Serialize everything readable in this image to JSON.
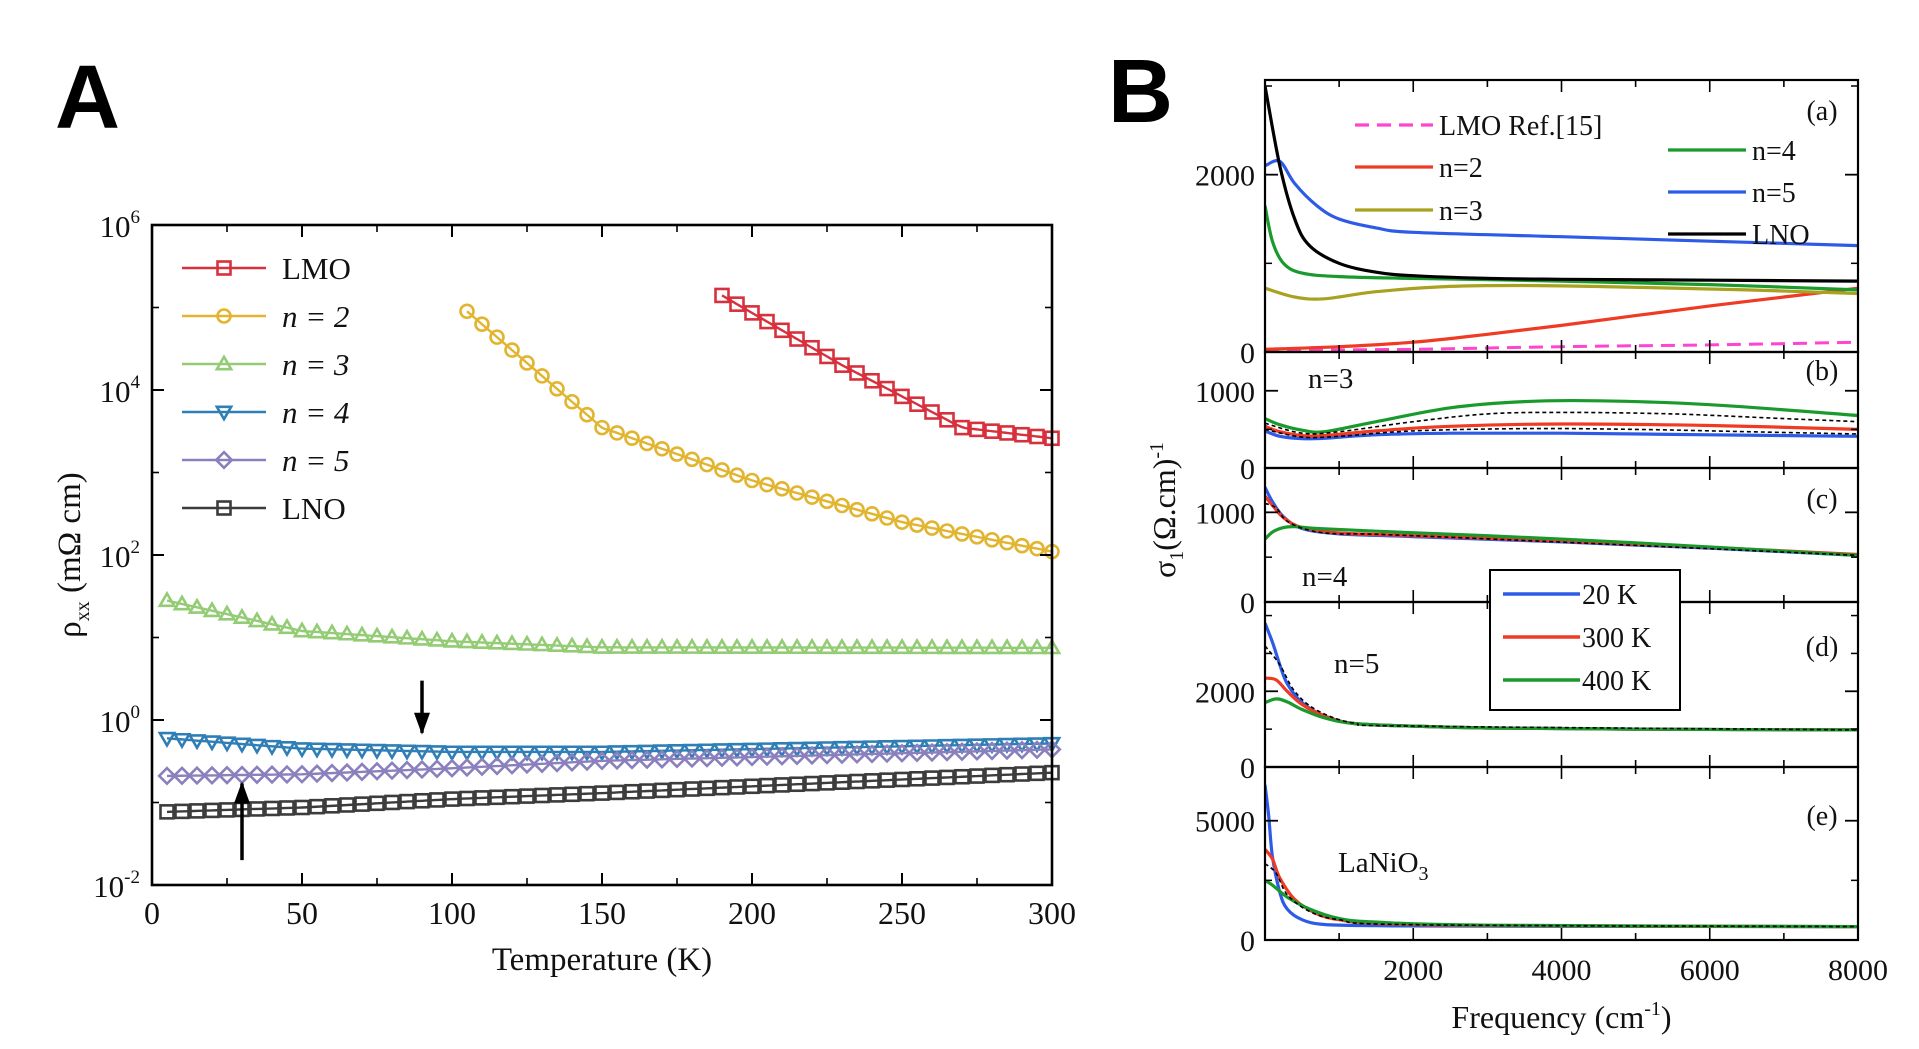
{
  "figure": {
    "panel_a_letter": "A",
    "panel_b_letter": "B"
  },
  "chart_data": [
    {
      "id": "A",
      "type": "scatter",
      "title": "",
      "xlabel": "Temperature (K)",
      "ylabel_base": "ρ",
      "ylabel_sub": "xx",
      "ylabel_unit": " (mΩ cm)",
      "yscale": "log",
      "xlim": [
        0,
        300
      ],
      "ylim_exp": [
        -2,
        6
      ],
      "xticks": [
        0,
        50,
        100,
        150,
        200,
        250,
        300
      ],
      "xtick_labels": [
        "0",
        "50",
        "100",
        "150",
        "200",
        "250",
        "300"
      ],
      "ytick_exps": [
        -2,
        0,
        2,
        4,
        6
      ],
      "ytick_base": "10",
      "ytick_exp_labels": [
        "-2",
        "0",
        "2",
        "4",
        "6"
      ],
      "legend": [
        {
          "label": "LMO",
          "italic": false
        },
        {
          "label": "n = 2",
          "italic": true
        },
        {
          "label": "n = 3",
          "italic": true
        },
        {
          "label": "n = 4",
          "italic": true
        },
        {
          "label": "n = 5",
          "italic": true
        },
        {
          "label": "LNO",
          "italic": false
        }
      ],
      "series": [
        {
          "name": "LMO",
          "marker": "square",
          "color": "#d7313d",
          "curve": {
            "x": [
              190,
              230,
              270,
              300
            ],
            "y": [
              140000,
              20000,
              3500,
              2600
            ]
          }
        },
        {
          "name": "n = 2",
          "marker": "circle",
          "color": "#e2b530",
          "curve": {
            "x": [
              105,
              150,
              200,
              250,
              300
            ],
            "y": [
              90000,
              3500,
              800,
              250,
              110
            ]
          }
        },
        {
          "name": "n = 3",
          "marker": "triangle-up",
          "color": "#93cc74",
          "curve": {
            "x": [
              5,
              50,
              100,
              150,
              300
            ],
            "y": [
              28,
              12,
              9,
              7.6,
              7.5
            ]
          }
        },
        {
          "name": "n = 4",
          "marker": "triangle-down",
          "color": "#2f7eb5",
          "curve": {
            "x": [
              5,
              50,
              100,
              150,
              300
            ],
            "y": [
              0.6,
              0.45,
              0.41,
              0.41,
              0.52
            ]
          }
        },
        {
          "name": "n = 5",
          "marker": "diamond",
          "color": "#8a80bd",
          "curve": {
            "x": [
              5,
              50,
              100,
              150,
              300
            ],
            "y": [
              0.21,
              0.22,
              0.26,
              0.32,
              0.44
            ]
          }
        },
        {
          "name": "LNO",
          "marker": "square",
          "color": "#3c3c3c",
          "curve": {
            "x": [
              5,
              50,
              100,
              150,
              300
            ],
            "y": [
              0.077,
              0.087,
              0.11,
              0.13,
              0.23
            ]
          }
        }
      ],
      "annotations": [
        {
          "type": "arrow-down",
          "x": 90,
          "y_from": 3.0,
          "y_to": 0.7
        },
        {
          "type": "arrow-up",
          "x": 30,
          "y_from": 0.02,
          "y_to": 0.17
        }
      ]
    },
    {
      "id": "B",
      "type": "line",
      "xlabel_main": "Frequency (cm",
      "xlabel_sup": "-1",
      "xlabel_end": ")",
      "ylabel_base": "σ",
      "ylabel_sub": "1",
      "ylabel_unit": "(Ω.cm)",
      "ylabel_sup": "-1",
      "xlim": [
        0,
        8000
      ],
      "xticks": [
        2000,
        4000,
        6000,
        8000
      ],
      "xtick_labels": [
        "2000",
        "4000",
        "6000",
        "8000"
      ],
      "subpanels": [
        {
          "tag": "(a)",
          "ylim": [
            0,
            3000
          ],
          "yticks": [
            0,
            2000
          ],
          "ytick_labels": [
            "0",
            "2000"
          ],
          "legend": [
            "LMO Ref.[15]",
            "n=2",
            "n=3",
            "n=4",
            "n=5",
            "LNO"
          ],
          "series": [
            {
              "name": "LMO Ref.[15]",
              "color": "#ff44d0",
              "dash": true,
              "x": [
                0,
                2000,
                4000,
                6000,
                8000
              ],
              "y": [
                20,
                30,
                60,
                80,
                110
              ]
            },
            {
              "name": "n=2",
              "color": "#ef3a24",
              "x": [
                0,
                1000,
                2000,
                3000,
                4000,
                5000,
                6000,
                7000,
                8000
              ],
              "y": [
                30,
                60,
                110,
                200,
                300,
                410,
                520,
                620,
                720
              ]
            },
            {
              "name": "n=3",
              "color": "#a8a220",
              "x": [
                0,
                400,
                800,
                1500,
                2500,
                3500,
                5000,
                6500,
                8000
              ],
              "y": [
                720,
                620,
                600,
                680,
                740,
                750,
                730,
                700,
                660
              ]
            },
            {
              "name": "n=4",
              "color": "#1a9a2c",
              "x": [
                0,
                100,
                250,
                500,
                1000,
                2000,
                4000,
                6000,
                8000
              ],
              "y": [
                1650,
                1250,
                1000,
                890,
                850,
                830,
                800,
                760,
                700
              ]
            },
            {
              "name": "n=5",
              "color": "#2d5be8",
              "x": [
                0,
                200,
                400,
                700,
                1000,
                1500,
                2000,
                4000,
                6000,
                8000
              ],
              "y": [
                2100,
                2150,
                1900,
                1650,
                1500,
                1400,
                1350,
                1300,
                1250,
                1200
              ]
            },
            {
              "name": "LNO",
              "color": "#000000",
              "x": [
                0,
                200,
                400,
                600,
                1000,
                1500,
                2000,
                3000,
                4000,
                6000,
                8000
              ],
              "y": [
                3000,
                2100,
                1500,
                1200,
                1000,
                900,
                860,
                830,
                820,
                810,
                800
              ]
            }
          ]
        },
        {
          "tag": "(b)",
          "label": "n=3",
          "ylim": [
            0,
            1450
          ],
          "yticks": [
            0,
            1000
          ],
          "ytick_labels": [
            "0",
            "1000"
          ],
          "series": [
            {
              "name": "20 K",
              "color": "#2d5be8",
              "x": [
                0,
                200,
                500,
                800,
                1500,
                2500,
                4000,
                6000,
                8000
              ],
              "y": [
                480,
                410,
                380,
                385,
                430,
                450,
                450,
                430,
                410
              ]
            },
            {
              "name": "300 K",
              "color": "#ef3a24",
              "x": [
                0,
                200,
                500,
                800,
                1500,
                2500,
                4000,
                6000,
                8000
              ],
              "y": [
                540,
                470,
                420,
                420,
                480,
                540,
                570,
                550,
                500
              ]
            },
            {
              "name": "400 K",
              "color": "#1a9a2c",
              "x": [
                0,
                200,
                500,
                800,
                1500,
                2500,
                3500,
                4500,
                6000,
                8000
              ],
              "y": [
                640,
                560,
                490,
                470,
                600,
                780,
                860,
                870,
                820,
                680
              ]
            },
            {
              "name": "intermediate",
              "color": "#000000",
              "dash": true,
              "x": [
                0,
                500,
                1000,
                2000,
                3000,
                4000,
                5500,
                7000,
                8000
              ],
              "y": [
                580,
                450,
                470,
                600,
                700,
                720,
                700,
                640,
                600
              ]
            },
            {
              "name": "intermediate",
              "color": "#000000",
              "dash": true,
              "x": [
                0,
                500,
                1000,
                2000,
                3500,
                5000,
                6500,
                8000
              ],
              "y": [
                500,
                400,
                410,
                480,
                510,
                500,
                470,
                440
              ]
            }
          ]
        },
        {
          "tag": "(c)",
          "label": "n=4",
          "ylim": [
            0,
            1450
          ],
          "yticks": [
            0,
            1000
          ],
          "ytick_labels": [
            "0",
            "1000"
          ],
          "series": [
            {
              "name": "20 K",
              "color": "#2d5be8",
              "x": [
                0,
                100,
                250,
                500,
                1000,
                2000,
                4000,
                6000,
                8000
              ],
              "y": [
                1280,
                1120,
                950,
                820,
                760,
                730,
                670,
                600,
                520
              ]
            },
            {
              "name": "300 K",
              "color": "#ef3a24",
              "x": [
                0,
                100,
                250,
                500,
                1000,
                2000,
                4000,
                6000,
                8000
              ],
              "y": [
                1180,
                1080,
                940,
                830,
                770,
                740,
                680,
                610,
                530
              ]
            },
            {
              "name": "400 K",
              "color": "#1a9a2c",
              "x": [
                0,
                100,
                250,
                400,
                700,
                1500,
                3000,
                5000,
                6500,
                8000
              ],
              "y": [
                700,
                780,
                830,
                840,
                820,
                790,
                740,
                660,
                590,
                520
              ]
            },
            {
              "name": "intermediate",
              "color": "#000000",
              "dash": true,
              "x": [
                0,
                150,
                300,
                600,
                1000,
                2000,
                8000
              ],
              "y": [
                1100,
                1050,
                900,
                800,
                760,
                740,
                520
              ]
            }
          ]
        },
        {
          "tag": "(d)",
          "label": "n=5",
          "ylim": [
            0,
            4200
          ],
          "yticks": [
            0,
            2000
          ],
          "ytick_labels": [
            "0",
            "2000"
          ],
          "series": [
            {
              "name": "20 K",
              "color": "#2d5be8",
              "x": [
                0,
                100,
                200,
                300,
                500,
                800,
                1200,
                2000,
                3000,
                5000,
                8000
              ],
              "y": [
                3800,
                3300,
                2700,
                2200,
                1700,
                1350,
                1150,
                1080,
                1030,
                1000,
                980
              ]
            },
            {
              "name": "300 K",
              "color": "#ef3a24",
              "x": [
                0,
                150,
                300,
                500,
                800,
                1200,
                2000,
                3000,
                5000,
                8000
              ],
              "y": [
                2350,
                2300,
                2000,
                1650,
                1350,
                1150,
                1080,
                1030,
                1000,
                980
              ]
            },
            {
              "name": "400 K",
              "color": "#1a9a2c",
              "x": [
                0,
                150,
                300,
                500,
                800,
                1200,
                2000,
                3000,
                5000,
                8000
              ],
              "y": [
                1700,
                1800,
                1720,
                1520,
                1300,
                1150,
                1080,
                1030,
                1000,
                980
              ]
            },
            {
              "name": "intermediate",
              "color": "#000000",
              "dash": true,
              "x": [
                0,
                200,
                400,
                700,
                1200,
                2000,
                8000
              ],
              "y": [
                3200,
                2700,
                2000,
                1500,
                1160,
                1080,
                980
              ]
            }
          ]
        },
        {
          "tag": "(e)",
          "label": "LaNiO",
          "label_sub": "3",
          "ylim": [
            0,
            7000
          ],
          "yticks": [
            0,
            5000
          ],
          "ytick_labels": [
            "0",
            "5000"
          ],
          "series": [
            {
              "name": "20 K",
              "color": "#2d5be8",
              "x": [
                0,
                50,
                100,
                200,
                300,
                500,
                800,
                1500,
                3000,
                8000
              ],
              "y": [
                6500,
                5200,
                3500,
                2000,
                1300,
                850,
                650,
                600,
                580,
                560
              ]
            },
            {
              "name": "300 K",
              "color": "#ef3a24",
              "x": [
                0,
                100,
                200,
                400,
                700,
                1000,
                1500,
                3000,
                8000
              ],
              "y": [
                3800,
                3400,
                2600,
                1700,
                1100,
                850,
                700,
                600,
                560
              ]
            },
            {
              "name": "400 K",
              "color": "#1a9a2c",
              "x": [
                0,
                100,
                300,
                600,
                1000,
                1500,
                3000,
                8000
              ],
              "y": [
                2500,
                2300,
                1800,
                1300,
                900,
                750,
                620,
                560
              ]
            },
            {
              "name": "intermediate",
              "color": "#000000",
              "dash": true,
              "x": [
                0,
                150,
                300,
                600,
                1000,
                2000,
                8000
              ],
              "y": [
                3200,
                2800,
                1900,
                1200,
                850,
                640,
                560
              ]
            }
          ]
        }
      ],
      "temperature_legend": [
        "20 K",
        "300 K",
        "400 K"
      ],
      "temperature_colors": [
        "#2d5be8",
        "#ef3a24",
        "#1a9a2c"
      ]
    }
  ]
}
